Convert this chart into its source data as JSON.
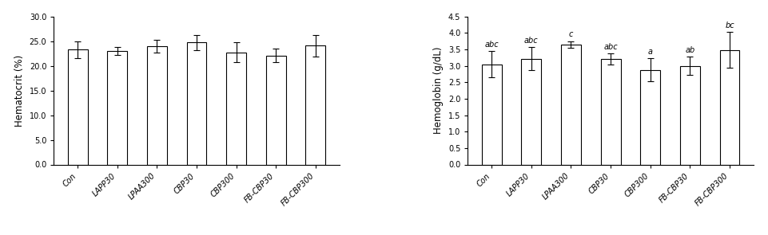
{
  "categories": [
    "Con",
    "LAPP30",
    "LPAA300",
    "CBP30",
    "CBP300",
    "FB-CBP30",
    "FB-CBP300"
  ],
  "hematocrit": {
    "values": [
      23.3,
      23.0,
      23.9,
      24.7,
      22.7,
      22.1,
      24.1
    ],
    "errors": [
      1.7,
      0.8,
      1.3,
      1.5,
      2.0,
      1.4,
      2.2
    ],
    "ylabel": "Hematocrit (%)",
    "ylim": [
      0,
      30
    ],
    "yticks": [
      0.0,
      5.0,
      10.0,
      15.0,
      20.0,
      25.0,
      30.0
    ],
    "letters": [
      "",
      "",
      "",
      "",
      "",
      "",
      ""
    ]
  },
  "hemoglobin": {
    "values": [
      3.05,
      3.22,
      3.65,
      3.2,
      2.88,
      3.0,
      3.48
    ],
    "errors": [
      0.4,
      0.35,
      0.1,
      0.17,
      0.35,
      0.28,
      0.55
    ],
    "ylabel": "Hemoglobin (g/dL)",
    "ylim": [
      0,
      4.5
    ],
    "yticks": [
      0.0,
      0.5,
      1.0,
      1.5,
      2.0,
      2.5,
      3.0,
      3.5,
      4.0,
      4.5
    ],
    "letters": [
      "abc",
      "abc",
      "c",
      "abc",
      "a",
      "ab",
      "bc"
    ]
  },
  "bar_color": "#ffffff",
  "bar_edgecolor": "#000000",
  "bar_width": 0.5,
  "capsize": 3,
  "letter_fontsize": 7,
  "tick_fontsize": 7,
  "ylabel_fontsize": 8.5,
  "xtick_fontsize": 7
}
